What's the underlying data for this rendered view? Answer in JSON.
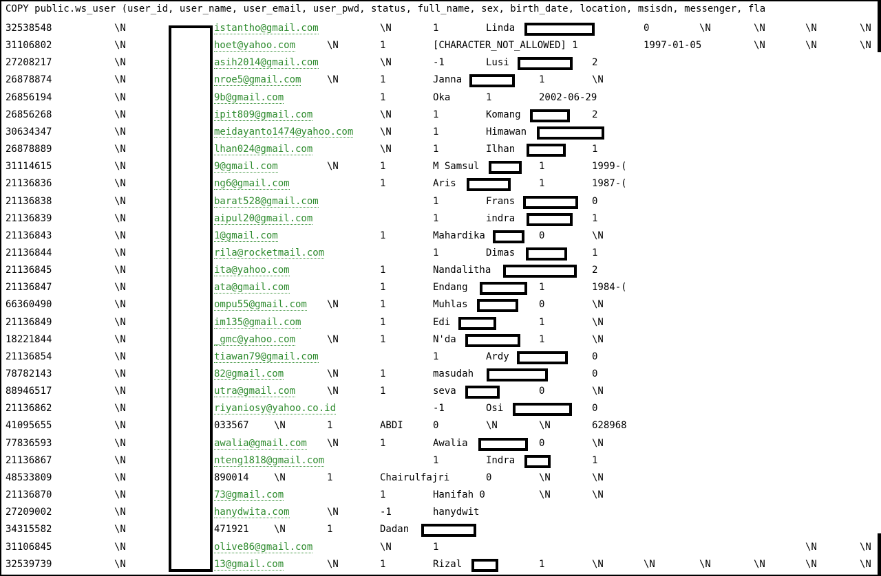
{
  "command": "COPY public.ws_user (user_id, user_name, user_email, user_pwd, status, full_name, sex, birth_date, location, msisdn, messenger, fla",
  "rows": [
    {
      "id": "32538548",
      "c2": "\\N",
      "email": "istantho@gmail.com",
      "rest": [
        [
          "550",
          "\\N"
        ],
        [
          "627",
          "1"
        ],
        [
          "704",
          "Linda"
        ],
        [
          "933",
          "0"
        ],
        [
          "1014",
          "\\N"
        ],
        [
          "1093",
          "\\N"
        ],
        [
          "1168",
          "\\N"
        ],
        [
          "1247",
          "\\N"
        ]
      ]
    },
    {
      "id": "31106802",
      "c2": "\\N",
      "email": "hoet@yahoo.com",
      "rest": [
        [
          "473",
          "\\N"
        ],
        [
          "550",
          "1"
        ],
        [
          "627",
          "[CHARACTER_NOT_ALLOWED] 1"
        ],
        [
          "933",
          "1997-01-05"
        ],
        [
          "1093",
          "\\N"
        ],
        [
          "1168",
          "\\N"
        ],
        [
          "1247",
          "\\N"
        ]
      ]
    },
    {
      "id": "27208217",
      "c2": "\\N",
      "email": "asih2014@gmail.com",
      "rest": [
        [
          "550",
          "\\N"
        ],
        [
          "627",
          "-1"
        ],
        [
          "704",
          "Lusi"
        ],
        [
          "858",
          "2"
        ]
      ]
    },
    {
      "id": "26878874",
      "c2": "\\N",
      "email": "nroe5@gmail.com",
      "rest": [
        [
          "473",
          "\\N"
        ],
        [
          "550",
          "1"
        ],
        [
          "627",
          "Janna"
        ],
        [
          "781",
          "1"
        ],
        [
          "858",
          "\\N"
        ]
      ]
    },
    {
      "id": "26856194",
      "c2": "\\N",
      "email": "9b@gmail.com",
      "rest": [
        [
          "550",
          "1"
        ],
        [
          "627",
          "Oka"
        ],
        [
          "704",
          "1"
        ],
        [
          "781",
          "2002-06-29"
        ]
      ]
    },
    {
      "id": "26856268",
      "c2": "\\N",
      "email": "ipit809@gmail.com",
      "rest": [
        [
          "550",
          "\\N"
        ],
        [
          "627",
          "1"
        ],
        [
          "704",
          "Komang"
        ],
        [
          "858",
          "2"
        ]
      ]
    },
    {
      "id": "30634347",
      "c2": "\\N",
      "email": "meidayanto1474@yahoo.com",
      "rest": [
        [
          "550",
          "\\N"
        ],
        [
          "627",
          "1"
        ],
        [
          "704",
          "Himawan"
        ]
      ]
    },
    {
      "id": "26878889",
      "c2": "\\N",
      "email": "lhan024@gmail.com",
      "rest": [
        [
          "550",
          "\\N"
        ],
        [
          "627",
          "1"
        ],
        [
          "704",
          "Ilhan"
        ],
        [
          "858",
          "1"
        ]
      ]
    },
    {
      "id": "31114615",
      "c2": "\\N",
      "email": "9@gmail.com",
      "rest": [
        [
          "473",
          "\\N"
        ],
        [
          "550",
          "1"
        ],
        [
          "627",
          "M Samsul"
        ],
        [
          "781",
          "1"
        ],
        [
          "858",
          "1999-("
        ]
      ]
    },
    {
      "id": "21136836",
      "c2": "\\N",
      "email": "ng6@gmail.com",
      "rest": [
        [
          "550",
          "1"
        ],
        [
          "627",
          "Aris"
        ],
        [
          "781",
          "1"
        ],
        [
          "858",
          "1987-("
        ]
      ]
    },
    {
      "id": "21136838",
      "c2": "\\N",
      "email": "barat528@gmail.com",
      "rest": [
        [
          "627",
          "1"
        ],
        [
          "704",
          "Frans"
        ],
        [
          "858",
          "0"
        ]
      ]
    },
    {
      "id": "21136839",
      "c2": "\\N",
      "email": "aipul20@gmail.com",
      "rest": [
        [
          "627",
          "1"
        ],
        [
          "704",
          "indra"
        ],
        [
          "858",
          "1"
        ]
      ]
    },
    {
      "id": "21136843",
      "c2": "\\N",
      "email": "1@gmail.com",
      "rest": [
        [
          "550",
          "1"
        ],
        [
          "627",
          "Mahardika"
        ],
        [
          "781",
          "0"
        ],
        [
          "858",
          "\\N"
        ]
      ]
    },
    {
      "id": "21136844",
      "c2": "\\N",
      "email": "rila@rocketmail.com",
      "rest": [
        [
          "627",
          "1"
        ],
        [
          "704",
          "Dimas"
        ],
        [
          "858",
          "1"
        ]
      ]
    },
    {
      "id": "21136845",
      "c2": "\\N",
      "email": "ita@yahoo.com",
      "rest": [
        [
          "550",
          "1"
        ],
        [
          "627",
          "Nandalitha"
        ],
        [
          "858",
          "2"
        ]
      ]
    },
    {
      "id": "21136847",
      "c2": "\\N",
      "email": "ata@gmail.com",
      "rest": [
        [
          "550",
          "1"
        ],
        [
          "627",
          "Endang"
        ],
        [
          "781",
          "1"
        ],
        [
          "858",
          "1984-("
        ]
      ]
    },
    {
      "id": "66360490",
      "c2": "\\N",
      "email": "ompu55@gmail.com",
      "rest": [
        [
          "473",
          "\\N"
        ],
        [
          "550",
          "1"
        ],
        [
          "627",
          "Muhlas"
        ],
        [
          "781",
          "0"
        ],
        [
          "858",
          "\\N"
        ]
      ]
    },
    {
      "id": "21136849",
      "c2": "\\N",
      "email": "im135@gmail.com",
      "rest": [
        [
          "550",
          "1"
        ],
        [
          "627",
          "Edi"
        ],
        [
          "781",
          "1"
        ],
        [
          "858",
          "\\N"
        ]
      ]
    },
    {
      "id": "18221844",
      "c2": "\\N",
      "email": "_gmc@yahoo.com",
      "rest": [
        [
          "473",
          "\\N"
        ],
        [
          "550",
          "1"
        ],
        [
          "627",
          "N'da"
        ],
        [
          "781",
          "1"
        ],
        [
          "858",
          "\\N"
        ]
      ]
    },
    {
      "id": "21136854",
      "c2": "\\N",
      "email": "tiawan79@gmail.com",
      "rest": [
        [
          "627",
          "1"
        ],
        [
          "704",
          "Ardy"
        ],
        [
          "858",
          "0"
        ]
      ]
    },
    {
      "id": "78782143",
      "c2": "\\N",
      "email": "82@gmail.com",
      "rest": [
        [
          "473",
          "\\N"
        ],
        [
          "550",
          "1"
        ],
        [
          "627",
          "masudah"
        ],
        [
          "858",
          "0"
        ]
      ]
    },
    {
      "id": "88946517",
      "c2": "\\N",
      "email": "utra@gmail.com",
      "rest": [
        [
          "473",
          "\\N"
        ],
        [
          "550",
          "1"
        ],
        [
          "627",
          "seva"
        ],
        [
          "781",
          "0"
        ],
        [
          "858",
          "\\N"
        ]
      ]
    },
    {
      "id": "21136862",
      "c2": "\\N",
      "email": "riyaniosy@yahoo.co.id",
      "rest": [
        [
          "627",
          "-1"
        ],
        [
          "704",
          "Osi"
        ],
        [
          "858",
          "0"
        ]
      ]
    },
    {
      "id": "41095655",
      "c2": "\\N",
      "plain": "033567",
      "rest": [
        [
          "396",
          "\\N"
        ],
        [
          "473",
          "1"
        ],
        [
          "550",
          "ABDI"
        ],
        [
          "627",
          "0"
        ],
        [
          "704",
          "\\N"
        ],
        [
          "781",
          "\\N"
        ],
        [
          "858",
          "628968"
        ]
      ]
    },
    {
      "id": "77836593",
      "c2": "\\N",
      "email": "awalia@gmail.com",
      "rest": [
        [
          "473",
          "\\N"
        ],
        [
          "550",
          "1"
        ],
        [
          "627",
          "Awalia"
        ],
        [
          "781",
          "0"
        ],
        [
          "858",
          "\\N"
        ]
      ]
    },
    {
      "id": "21136867",
      "c2": "\\N",
      "email": "nteng1818@gmail.com",
      "rest": [
        [
          "627",
          "1"
        ],
        [
          "704",
          "Indra"
        ],
        [
          "858",
          "1"
        ]
      ]
    },
    {
      "id": "48533809",
      "c2": "\\N",
      "plain": "890014",
      "rest": [
        [
          "396",
          "\\N"
        ],
        [
          "473",
          "1"
        ],
        [
          "550",
          "Chairulfajri"
        ],
        [
          "704",
          "0"
        ],
        [
          "781",
          "\\N"
        ],
        [
          "858",
          "\\N"
        ]
      ]
    },
    {
      "id": "21136870",
      "c2": "\\N",
      "email": "73@gmail.com",
      "rest": [
        [
          "550",
          "1"
        ],
        [
          "627",
          "Hanifah 0"
        ],
        [
          "781",
          "\\N"
        ],
        [
          "858",
          "\\N"
        ]
      ]
    },
    {
      "id": "27209002",
      "c2": "\\N",
      "email": "hanydwita.com",
      "rest": [
        [
          "473",
          "\\N"
        ],
        [
          "550",
          "-1"
        ],
        [
          "627",
          "hanydwit"
        ]
      ]
    },
    {
      "id": "34315582",
      "c2": "\\N",
      "plain": "471921",
      "rest": [
        [
          "396",
          "\\N"
        ],
        [
          "473",
          "1"
        ],
        [
          "550",
          "Dadan"
        ]
      ]
    },
    {
      "id": "31106845",
      "c2": "\\N",
      "email": "olive86@gmail.com",
      "rest": [
        [
          "550",
          "\\N"
        ],
        [
          "627",
          "1"
        ],
        [
          "1168",
          "\\N"
        ],
        [
          "1247",
          "\\N"
        ]
      ]
    },
    {
      "id": "32539739",
      "c2": "\\N",
      "email": "13@gmail.com",
      "rest": [
        [
          "473",
          "\\N"
        ],
        [
          "550",
          "1"
        ],
        [
          "627",
          "Rizal"
        ],
        [
          "781",
          "1"
        ],
        [
          "858",
          "\\N"
        ],
        [
          "933",
          "\\N"
        ],
        [
          "1014",
          "\\N"
        ],
        [
          "1093",
          "\\N"
        ],
        [
          "1168",
          "\\N"
        ],
        [
          "1247",
          "\\N"
        ]
      ]
    }
  ],
  "redactions": [
    [
      0,
      760,
      862
    ],
    [
      2,
      750,
      830
    ],
    [
      3,
      680,
      746
    ],
    [
      5,
      768,
      826
    ],
    [
      6,
      778,
      876
    ],
    [
      7,
      763,
      820
    ],
    [
      8,
      708,
      756
    ],
    [
      9,
      676,
      740
    ],
    [
      10,
      758,
      838
    ],
    [
      11,
      763,
      830
    ],
    [
      12,
      714,
      760
    ],
    [
      13,
      762,
      822
    ],
    [
      14,
      729,
      836
    ],
    [
      15,
      695,
      764
    ],
    [
      16,
      691,
      751
    ],
    [
      17,
      664,
      719
    ],
    [
      18,
      674,
      754
    ],
    [
      19,
      749,
      823
    ],
    [
      20,
      705,
      794
    ],
    [
      21,
      674,
      724
    ],
    [
      22,
      743,
      829
    ],
    [
      24,
      693,
      765
    ],
    [
      25,
      760,
      798
    ],
    [
      29,
      610,
      690
    ],
    [
      31,
      683,
      722
    ]
  ]
}
